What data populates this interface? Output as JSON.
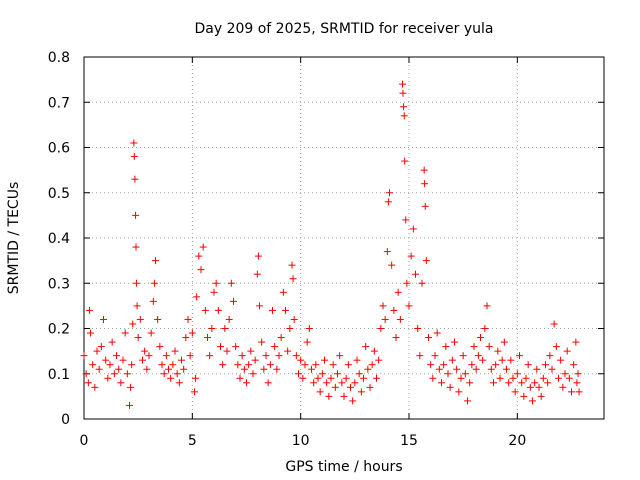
{
  "chart_data": {
    "type": "scatter",
    "title": "Day 209 of 2025, SRMTID for receiver yula",
    "xlabel": "GPS time / hours",
    "ylabel": "SRMTID / TECUs",
    "xlim": [
      0,
      24
    ],
    "ylim": [
      0,
      0.8
    ],
    "xticks": [
      0,
      5,
      10,
      15,
      20
    ],
    "xtick_labels": [
      "0",
      "5",
      "10",
      "15",
      "20"
    ],
    "yticks": [
      0,
      0.1,
      0.2,
      0.3,
      0.4,
      0.5,
      0.6,
      0.7,
      0.8
    ],
    "ytick_labels": [
      "0",
      "0.1",
      "0.2",
      "0.3",
      "0.4",
      "0.5",
      "0.6",
      "0.7",
      "0.8"
    ],
    "grid": true,
    "marker": "+",
    "color": "#ff0000",
    "series": [
      {
        "name": "SRMTID",
        "points": [
          [
            0.0,
            0.14
          ],
          [
            0.1,
            0.1
          ],
          [
            0.2,
            0.08
          ],
          [
            0.25,
            0.24
          ],
          [
            0.3,
            0.19
          ],
          [
            0.4,
            0.12
          ],
          [
            0.5,
            0.07
          ],
          [
            0.6,
            0.15
          ],
          [
            0.7,
            0.11
          ],
          [
            0.8,
            0.16
          ],
          [
            0.9,
            0.22
          ],
          [
            1.0,
            0.13
          ],
          [
            1.1,
            0.09
          ],
          [
            1.2,
            0.12
          ],
          [
            1.3,
            0.17
          ],
          [
            1.4,
            0.1
          ],
          [
            1.5,
            0.14
          ],
          [
            1.6,
            0.11
          ],
          [
            1.7,
            0.08
          ],
          [
            1.8,
            0.13
          ],
          [
            1.9,
            0.19
          ],
          [
            2.0,
            0.1
          ],
          [
            2.1,
            0.03
          ],
          [
            2.15,
            0.07
          ],
          [
            2.2,
            0.12
          ],
          [
            2.25,
            0.21
          ],
          [
            2.3,
            0.61
          ],
          [
            2.32,
            0.58
          ],
          [
            2.35,
            0.53
          ],
          [
            2.38,
            0.45
          ],
          [
            2.4,
            0.38
          ],
          [
            2.42,
            0.3
          ],
          [
            2.45,
            0.25
          ],
          [
            2.5,
            0.18
          ],
          [
            2.6,
            0.22
          ],
          [
            2.7,
            0.13
          ],
          [
            2.8,
            0.15
          ],
          [
            2.9,
            0.11
          ],
          [
            3.0,
            0.14
          ],
          [
            3.1,
            0.19
          ],
          [
            3.2,
            0.26
          ],
          [
            3.25,
            0.3
          ],
          [
            3.3,
            0.35
          ],
          [
            3.4,
            0.22
          ],
          [
            3.5,
            0.16
          ],
          [
            3.6,
            0.12
          ],
          [
            3.7,
            0.1
          ],
          [
            3.8,
            0.14
          ],
          [
            3.9,
            0.11
          ],
          [
            4.0,
            0.09
          ],
          [
            4.1,
            0.12
          ],
          [
            4.2,
            0.15
          ],
          [
            4.3,
            0.1
          ],
          [
            4.4,
            0.08
          ],
          [
            4.5,
            0.13
          ],
          [
            4.6,
            0.11
          ],
          [
            4.7,
            0.18
          ],
          [
            4.8,
            0.22
          ],
          [
            4.9,
            0.14
          ],
          [
            5.0,
            0.19
          ],
          [
            5.1,
            0.06
          ],
          [
            5.15,
            0.09
          ],
          [
            5.2,
            0.27
          ],
          [
            5.3,
            0.36
          ],
          [
            5.4,
            0.33
          ],
          [
            5.5,
            0.38
          ],
          [
            5.6,
            0.24
          ],
          [
            5.7,
            0.18
          ],
          [
            5.8,
            0.14
          ],
          [
            5.9,
            0.2
          ],
          [
            6.0,
            0.28
          ],
          [
            6.1,
            0.3
          ],
          [
            6.2,
            0.24
          ],
          [
            6.3,
            0.16
          ],
          [
            6.4,
            0.12
          ],
          [
            6.5,
            0.2
          ],
          [
            6.6,
            0.15
          ],
          [
            6.7,
            0.22
          ],
          [
            6.8,
            0.3
          ],
          [
            6.9,
            0.26
          ],
          [
            7.0,
            0.16
          ],
          [
            7.1,
            0.12
          ],
          [
            7.2,
            0.09
          ],
          [
            7.3,
            0.14
          ],
          [
            7.4,
            0.11
          ],
          [
            7.5,
            0.08
          ],
          [
            7.6,
            0.12
          ],
          [
            7.7,
            0.15
          ],
          [
            7.8,
            0.1
          ],
          [
            7.9,
            0.13
          ],
          [
            8.0,
            0.32
          ],
          [
            8.05,
            0.36
          ],
          [
            8.1,
            0.25
          ],
          [
            8.2,
            0.17
          ],
          [
            8.3,
            0.11
          ],
          [
            8.4,
            0.14
          ],
          [
            8.5,
            0.08
          ],
          [
            8.6,
            0.12
          ],
          [
            8.7,
            0.24
          ],
          [
            8.8,
            0.16
          ],
          [
            8.9,
            0.11
          ],
          [
            9.0,
            0.14
          ],
          [
            9.1,
            0.18
          ],
          [
            9.2,
            0.28
          ],
          [
            9.3,
            0.24
          ],
          [
            9.4,
            0.15
          ],
          [
            9.5,
            0.2
          ],
          [
            9.6,
            0.34
          ],
          [
            9.65,
            0.31
          ],
          [
            9.7,
            0.22
          ],
          [
            9.8,
            0.14
          ],
          [
            9.9,
            0.1
          ],
          [
            10.0,
            0.13
          ],
          [
            10.1,
            0.09
          ],
          [
            10.2,
            0.12
          ],
          [
            10.3,
            0.17
          ],
          [
            10.4,
            0.2
          ],
          [
            10.5,
            0.11
          ],
          [
            10.6,
            0.08
          ],
          [
            10.7,
            0.12
          ],
          [
            10.8,
            0.09
          ],
          [
            10.9,
            0.06
          ],
          [
            11.0,
            0.1
          ],
          [
            11.1,
            0.13
          ],
          [
            11.2,
            0.08
          ],
          [
            11.3,
            0.05
          ],
          [
            11.4,
            0.09
          ],
          [
            11.5,
            0.12
          ],
          [
            11.6,
            0.07
          ],
          [
            11.7,
            0.1
          ],
          [
            11.8,
            0.14
          ],
          [
            11.9,
            0.08
          ],
          [
            12.0,
            0.05
          ],
          [
            12.1,
            0.09
          ],
          [
            12.2,
            0.12
          ],
          [
            12.3,
            0.07
          ],
          [
            12.4,
            0.04
          ],
          [
            12.5,
            0.08
          ],
          [
            12.6,
            0.13
          ],
          [
            12.7,
            0.1
          ],
          [
            12.8,
            0.06
          ],
          [
            12.9,
            0.09
          ],
          [
            13.0,
            0.16
          ],
          [
            13.1,
            0.11
          ],
          [
            13.2,
            0.07
          ],
          [
            13.3,
            0.12
          ],
          [
            13.4,
            0.15
          ],
          [
            13.5,
            0.09
          ],
          [
            13.6,
            0.13
          ],
          [
            13.7,
            0.2
          ],
          [
            13.8,
            0.25
          ],
          [
            13.9,
            0.22
          ],
          [
            14.0,
            0.37
          ],
          [
            14.05,
            0.48
          ],
          [
            14.1,
            0.5
          ],
          [
            14.2,
            0.34
          ],
          [
            14.3,
            0.24
          ],
          [
            14.4,
            0.18
          ],
          [
            14.5,
            0.28
          ],
          [
            14.6,
            0.22
          ],
          [
            14.7,
            0.74
          ],
          [
            14.72,
            0.72
          ],
          [
            14.75,
            0.69
          ],
          [
            14.78,
            0.67
          ],
          [
            14.8,
            0.57
          ],
          [
            14.85,
            0.44
          ],
          [
            14.9,
            0.3
          ],
          [
            15.0,
            0.25
          ],
          [
            15.1,
            0.36
          ],
          [
            15.2,
            0.42
          ],
          [
            15.3,
            0.32
          ],
          [
            15.4,
            0.2
          ],
          [
            15.5,
            0.14
          ],
          [
            15.6,
            0.3
          ],
          [
            15.7,
            0.55
          ],
          [
            15.72,
            0.52
          ],
          [
            15.75,
            0.47
          ],
          [
            15.8,
            0.35
          ],
          [
            15.9,
            0.18
          ],
          [
            16.0,
            0.12
          ],
          [
            16.1,
            0.09
          ],
          [
            16.2,
            0.14
          ],
          [
            16.3,
            0.19
          ],
          [
            16.4,
            0.11
          ],
          [
            16.5,
            0.08
          ],
          [
            16.6,
            0.12
          ],
          [
            16.7,
            0.16
          ],
          [
            16.8,
            0.1
          ],
          [
            16.9,
            0.07
          ],
          [
            17.0,
            0.13
          ],
          [
            17.1,
            0.17
          ],
          [
            17.2,
            0.11
          ],
          [
            17.3,
            0.06
          ],
          [
            17.4,
            0.09
          ],
          [
            17.5,
            0.14
          ],
          [
            17.6,
            0.1
          ],
          [
            17.7,
            0.04
          ],
          [
            17.8,
            0.08
          ],
          [
            17.9,
            0.12
          ],
          [
            18.0,
            0.16
          ],
          [
            18.1,
            0.11
          ],
          [
            18.2,
            0.14
          ],
          [
            18.3,
            0.18
          ],
          [
            18.4,
            0.13
          ],
          [
            18.5,
            0.2
          ],
          [
            18.6,
            0.25
          ],
          [
            18.7,
            0.16
          ],
          [
            18.8,
            0.11
          ],
          [
            18.9,
            0.08
          ],
          [
            19.0,
            0.12
          ],
          [
            19.1,
            0.15
          ],
          [
            19.2,
            0.09
          ],
          [
            19.3,
            0.13
          ],
          [
            19.4,
            0.17
          ],
          [
            19.5,
            0.11
          ],
          [
            19.6,
            0.08
          ],
          [
            19.7,
            0.13
          ],
          [
            19.8,
            0.09
          ],
          [
            19.9,
            0.06
          ],
          [
            20.0,
            0.1
          ],
          [
            20.1,
            0.14
          ],
          [
            20.2,
            0.08
          ],
          [
            20.3,
            0.05
          ],
          [
            20.4,
            0.09
          ],
          [
            20.5,
            0.12
          ],
          [
            20.6,
            0.07
          ],
          [
            20.7,
            0.04
          ],
          [
            20.8,
            0.08
          ],
          [
            20.9,
            0.11
          ],
          [
            21.0,
            0.07
          ],
          [
            21.1,
            0.05
          ],
          [
            21.2,
            0.09
          ],
          [
            21.3,
            0.12
          ],
          [
            21.4,
            0.08
          ],
          [
            21.5,
            0.14
          ],
          [
            21.6,
            0.11
          ],
          [
            21.7,
            0.21
          ],
          [
            21.8,
            0.16
          ],
          [
            21.9,
            0.09
          ],
          [
            22.0,
            0.13
          ],
          [
            22.1,
            0.07
          ],
          [
            22.2,
            0.1
          ],
          [
            22.3,
            0.15
          ],
          [
            22.4,
            0.09
          ],
          [
            22.5,
            0.06
          ],
          [
            22.6,
            0.12
          ],
          [
            22.7,
            0.17
          ],
          [
            22.75,
            0.08
          ],
          [
            22.8,
            0.1
          ],
          [
            22.85,
            0.06
          ]
        ]
      }
    ]
  }
}
